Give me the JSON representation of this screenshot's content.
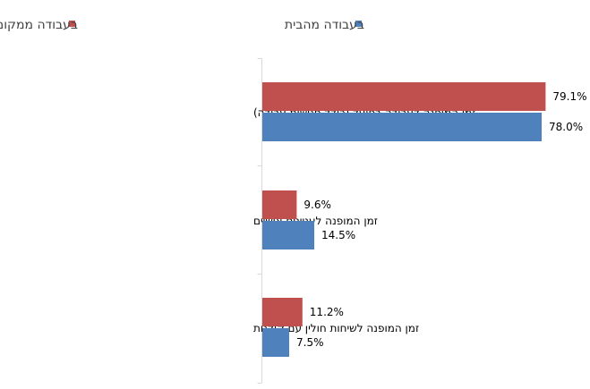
{
  "chart_data": {
    "type": "bar",
    "orientation": "horizontal",
    "categories": [
      "זמן המופנה לעבודה בפועל (כולל פגישות עבודה)",
      "זמן המופנה לעניינים  אישיים",
      "זמן המופנה לשיחות חולין עם קולגות"
    ],
    "series": [
      {
        "name": "בעבודה ממקום העבודה",
        "color": "#c0504d",
        "values": [
          79.1,
          9.6,
          11.2
        ]
      },
      {
        "name": "בעבודה מהבית",
        "color": "#4f81bd",
        "values": [
          78.0,
          14.5,
          7.5
        ]
      }
    ],
    "value_format": "percent_1dp",
    "xlim": [
      0,
      100
    ],
    "legend_position": "top",
    "grid": false,
    "title": "",
    "xlabel": "",
    "ylabel": ""
  }
}
